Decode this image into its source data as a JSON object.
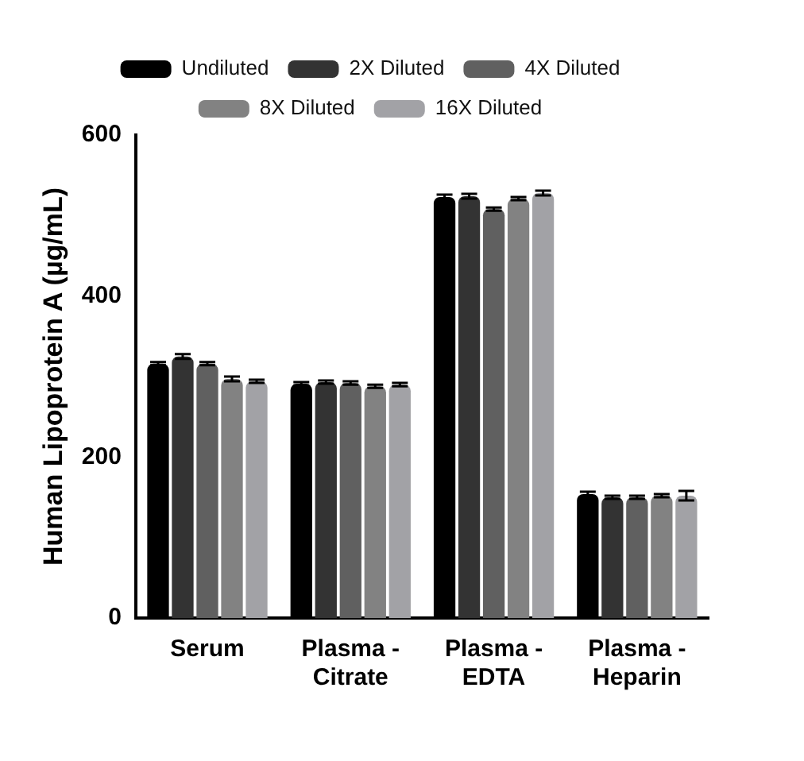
{
  "chart_data": {
    "type": "bar",
    "ylabel": "Human Lipoprotein A (µg/mL)",
    "categories": [
      "Serum",
      "Plasma - Citrate",
      "Plasma - EDTA",
      "Plasma - Heparin"
    ],
    "series": [
      {
        "name": "Undiluted",
        "color": "#000000",
        "values": [
          316,
          291,
          523,
          154
        ],
        "errors": [
          2,
          2,
          3,
          3
        ]
      },
      {
        "name": "2X Diluted",
        "color": "#333333",
        "values": [
          325,
          293,
          524,
          150
        ],
        "errors": [
          3,
          2,
          3,
          2
        ]
      },
      {
        "name": "4X Diluted",
        "color": "#606060",
        "values": [
          316,
          292,
          508,
          150
        ],
        "errors": [
          2,
          2,
          2,
          2
        ]
      },
      {
        "name": "8X Diluted",
        "color": "#828282",
        "values": [
          297,
          288,
          521,
          152
        ],
        "errors": [
          3,
          2,
          2,
          2
        ]
      },
      {
        "name": "16X Diluted",
        "color": "#a2a2a6",
        "values": [
          294,
          290,
          528,
          152
        ],
        "errors": [
          2,
          2,
          3,
          6
        ]
      }
    ],
    "ylim": [
      0,
      600
    ],
    "yticks": [
      0,
      200,
      400,
      600
    ],
    "grid": false,
    "legend": "top"
  }
}
